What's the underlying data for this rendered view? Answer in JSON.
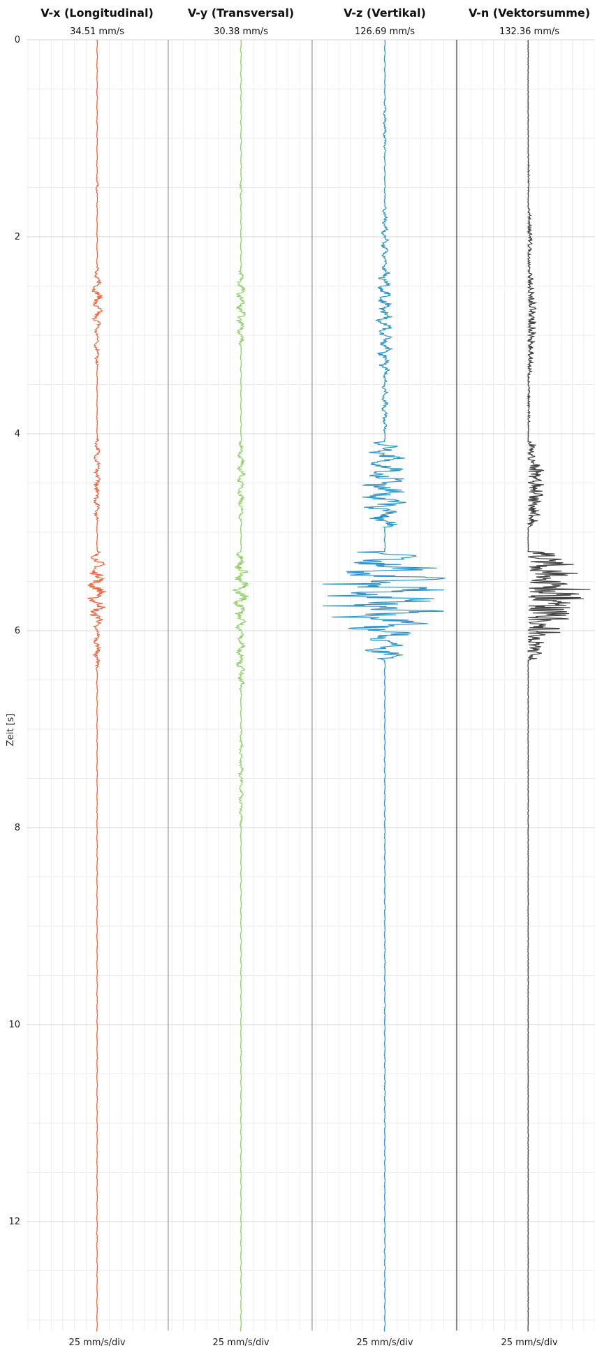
{
  "chart_data": {
    "type": "line",
    "ylabel": "Zeit [s]",
    "ylim": [
      0,
      13.1
    ],
    "yticks": [
      0,
      2,
      4,
      6,
      8,
      10,
      12
    ],
    "grid": true,
    "orientation": "vertical-traces",
    "series": [
      {
        "name": "V-x (Longitudinal)",
        "peak_label": "34.51 mm/s",
        "scale_label": "25 mm/s/div",
        "color": "#f0643c",
        "bursts": [
          [
            1.4,
            1.6,
            2
          ],
          [
            2.3,
            3.0,
            7
          ],
          [
            3.0,
            3.3,
            4
          ],
          [
            4.05,
            4.9,
            5
          ],
          [
            5.2,
            6.0,
            13
          ],
          [
            6.0,
            6.4,
            5
          ]
        ]
      },
      {
        "name": "V-y (Transversal)",
        "peak_label": "30.38 mm/s",
        "scale_label": "25 mm/s/div",
        "color": "#8fd16a",
        "bursts": [
          [
            1.4,
            1.6,
            2
          ],
          [
            2.3,
            3.1,
            6
          ],
          [
            4.05,
            4.9,
            5
          ],
          [
            5.2,
            6.0,
            11
          ],
          [
            6.0,
            6.6,
            6
          ],
          [
            7.0,
            8.0,
            3
          ]
        ]
      },
      {
        "name": "V-z (Vertikal)",
        "peak_label": "126.69 mm/s",
        "scale_label": "25 mm/s/div",
        "color": "#2e94c8",
        "bursts": [
          [
            0.6,
            1.2,
            2
          ],
          [
            1.7,
            2.3,
            5
          ],
          [
            2.3,
            3.4,
            12
          ],
          [
            3.4,
            4.0,
            4
          ],
          [
            4.08,
            4.95,
            32
          ],
          [
            5.2,
            6.05,
            86
          ],
          [
            6.05,
            6.3,
            30
          ]
        ]
      },
      {
        "name": "V-n (Vektorsumme)",
        "peak_label": "132.36 mm/s",
        "scale_label": "25 mm/s/div",
        "color": "#404040",
        "bursts": [
          [
            1.15,
            1.6,
            2
          ],
          [
            1.7,
            2.3,
            6
          ],
          [
            2.3,
            3.4,
            12
          ],
          [
            3.4,
            4.0,
            3
          ],
          [
            4.08,
            4.95,
            24
          ],
          [
            5.2,
            6.05,
            90
          ],
          [
            6.05,
            6.3,
            26
          ]
        ]
      }
    ]
  }
}
